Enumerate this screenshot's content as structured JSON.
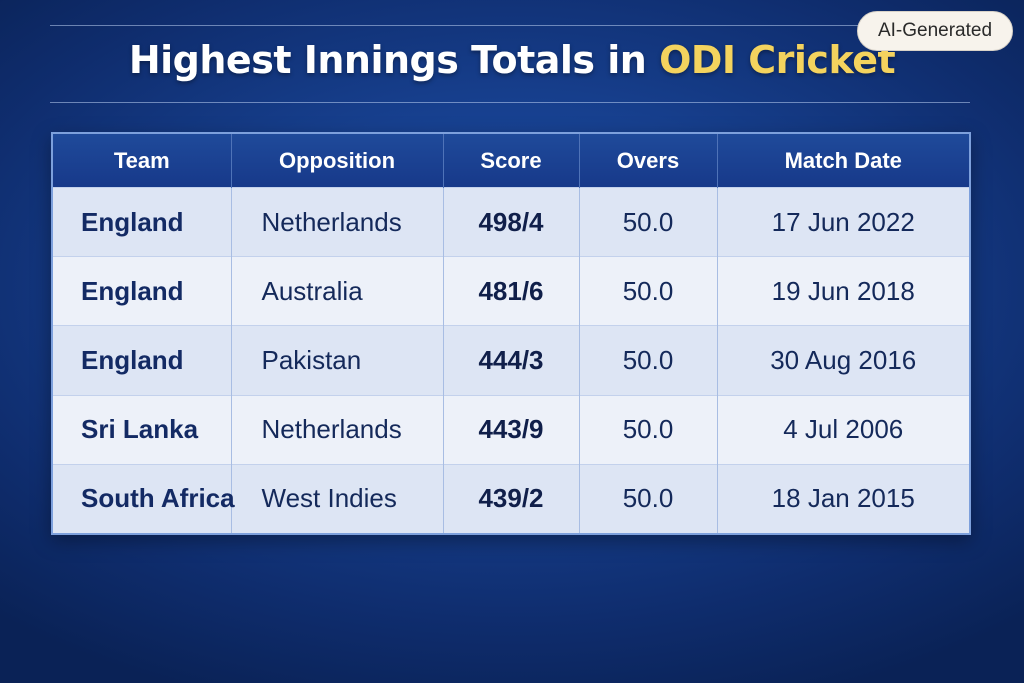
{
  "title": {
    "main": "Highest Innings Totals in ",
    "accent": "ODI Cricket"
  },
  "badge": "AI-Generated",
  "table": {
    "headers": [
      "Team",
      "Opposition",
      "Score",
      "Overs",
      "Match Date"
    ],
    "rows": [
      {
        "team": "England",
        "opposition": "Netherlands",
        "score": "498/4",
        "overs": "50.0",
        "date": "17 Jun 2022"
      },
      {
        "team": "England",
        "opposition": "Australia",
        "score": "481/6",
        "overs": "50.0",
        "date": "19 Jun 2018"
      },
      {
        "team": "England",
        "opposition": "Pakistan",
        "score": "444/3",
        "overs": "50.0",
        "date": "30 Aug 2016"
      },
      {
        "team": "Sri Lanka",
        "opposition": "Netherlands",
        "score": "443/9",
        "overs": "50.0",
        "date": "4 Jul 2006"
      },
      {
        "team": "South Africa",
        "opposition": "West Indies",
        "score": "439/2",
        "overs": "50.0",
        "date": "18 Jan 2015"
      }
    ]
  },
  "colors": {
    "background": "#17408f",
    "accent": "#f4d35e",
    "header": "#1f4a9a"
  }
}
